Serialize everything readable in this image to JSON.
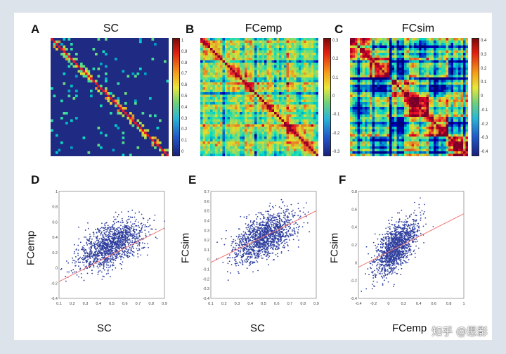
{
  "panels": {
    "A": {
      "label": "A",
      "title": "SC"
    },
    "B": {
      "label": "B",
      "title": "FCemp"
    },
    "C": {
      "label": "C",
      "title": "FCsim"
    },
    "D": {
      "label": "D",
      "xlabel": "SC",
      "ylabel": "FCemp"
    },
    "E": {
      "label": "E",
      "xlabel": "SC",
      "ylabel": "FCsim"
    },
    "F": {
      "label": "F",
      "xlabel": "FCemp",
      "ylabel": "FCsim"
    }
  },
  "colors": {
    "dot": "#2f3f9e",
    "fit_line": "#f07878",
    "jet_low": "#1f2a82",
    "jet_high": "#8a1010"
  },
  "watermark": "知乎 @思影",
  "chart_data": [
    {
      "panel": "A",
      "type": "heatmap",
      "title": "SC",
      "colorbar_ticks": [
        "1",
        "0.9",
        "0.8",
        "0.7",
        "0.6",
        "0.5",
        "0.4",
        "0.3",
        "0.2",
        "0.1",
        "0"
      ],
      "colorbar_range": [
        0,
        1
      ]
    },
    {
      "panel": "B",
      "type": "heatmap",
      "title": "FCemp",
      "colorbar_ticks": [
        "0.3",
        "0.2",
        "0.1",
        "0",
        "-0.1",
        "-0.2",
        "-0.3"
      ],
      "colorbar_range": [
        -0.35,
        0.35
      ]
    },
    {
      "panel": "C",
      "type": "heatmap",
      "title": "FCsim",
      "colorbar_ticks": [
        "0.4",
        "0.3",
        "0.2",
        "0.1",
        "0",
        "-0.1",
        "-0.2",
        "-0.3",
        "-0.4"
      ],
      "colorbar_range": [
        -0.4,
        0.4
      ]
    },
    {
      "panel": "D",
      "type": "scatter",
      "xlabel": "SC",
      "ylabel": "FCemp",
      "xlim": [
        0.1,
        0.9
      ],
      "ylim": [
        -0.4,
        1.0
      ],
      "xticks": [
        "0.1",
        "0.2",
        "0.3",
        "0.4",
        "0.5",
        "0.6",
        "0.7",
        "0.8",
        "0.9"
      ],
      "yticks": [
        "-0.4",
        "-0.2",
        "0",
        "0.2",
        "0.4",
        "0.6",
        "0.8",
        "1"
      ],
      "cloud": {
        "cx": 0.5,
        "cy": 0.3,
        "sx": 0.12,
        "sy": 0.16,
        "rho": 0.55
      },
      "fit": {
        "x": [
          0.1,
          0.9
        ],
        "y": [
          -0.18,
          0.52
        ]
      }
    },
    {
      "panel": "E",
      "type": "scatter",
      "xlabel": "SC",
      "ylabel": "FCsim",
      "xlim": [
        0.1,
        0.9
      ],
      "ylim": [
        -0.4,
        0.7
      ],
      "xticks": [
        "0.1",
        "0.2",
        "0.3",
        "0.4",
        "0.5",
        "0.6",
        "0.7",
        "0.8",
        "0.9"
      ],
      "yticks": [
        "-0.4",
        "-0.3",
        "-0.2",
        "-0.1",
        "0",
        "0.1",
        "0.2",
        "0.3",
        "0.4",
        "0.5",
        "0.6",
        "0.7"
      ],
      "cloud": {
        "cx": 0.5,
        "cy": 0.23,
        "sx": 0.12,
        "sy": 0.13,
        "rho": 0.55
      },
      "fit": {
        "x": [
          0.1,
          0.9
        ],
        "y": [
          -0.03,
          0.5
        ]
      }
    },
    {
      "panel": "F",
      "type": "scatter",
      "xlabel": "FCemp",
      "ylabel": "FCsim",
      "xlim": [
        -0.4,
        1.0
      ],
      "ylim": [
        -0.4,
        0.8
      ],
      "xticks": [
        "-0.4",
        "-0.2",
        "0",
        "0.2",
        "0.4",
        "0.6",
        "0.8",
        "1"
      ],
      "yticks": [
        "-0.4",
        "-0.2",
        "0",
        "0.2",
        "0.4",
        "0.6",
        "0.8"
      ],
      "cloud": {
        "cx": 0.1,
        "cy": 0.18,
        "sx": 0.14,
        "sy": 0.15,
        "rho": 0.62
      },
      "fit": {
        "x": [
          -0.4,
          1.0
        ],
        "y": [
          -0.05,
          0.55
        ]
      }
    }
  ]
}
